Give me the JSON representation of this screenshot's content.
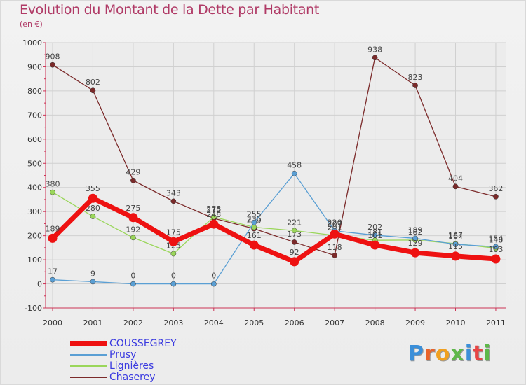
{
  "title": "Evolution du Montant de la Dette par Habitant",
  "subtitle": "(en €)",
  "logo_text": "Proxiti",
  "chart_data": {
    "type": "line",
    "x": [
      "2000",
      "2001",
      "2002",
      "2003",
      "2004",
      "2005",
      "2006",
      "2007",
      "2008",
      "2009",
      "2010",
      "2011"
    ],
    "ylim": [
      -100,
      1000
    ],
    "yticks": [
      -100,
      0,
      100,
      200,
      300,
      400,
      500,
      600,
      700,
      800,
      900,
      1000
    ],
    "grid": true,
    "legend_position": "bottom-left",
    "series": [
      {
        "name": "Chaserey",
        "color": "#7b2a2a",
        "values": [
          908,
          802,
          429,
          343,
          272,
          229,
          173,
          118,
          938,
          823,
          404,
          362
        ]
      },
      {
        "name": "Lignières",
        "color": "#9ad65a",
        "values": [
          380,
          280,
          192,
          125,
          278,
          235,
          221,
          201,
          181,
          182,
          167,
          148
        ]
      },
      {
        "name": "Prusy",
        "color": "#5a9fd4",
        "values": [
          17,
          9,
          0,
          0,
          0,
          255,
          458,
          220,
          202,
          189,
          164,
          154
        ]
      },
      {
        "name": "COUSSEGREY",
        "color": "#ee1111",
        "values": [
          189,
          355,
          275,
          175,
          248,
          161,
          92,
          207,
          161,
          129,
          115,
          103
        ]
      }
    ]
  }
}
